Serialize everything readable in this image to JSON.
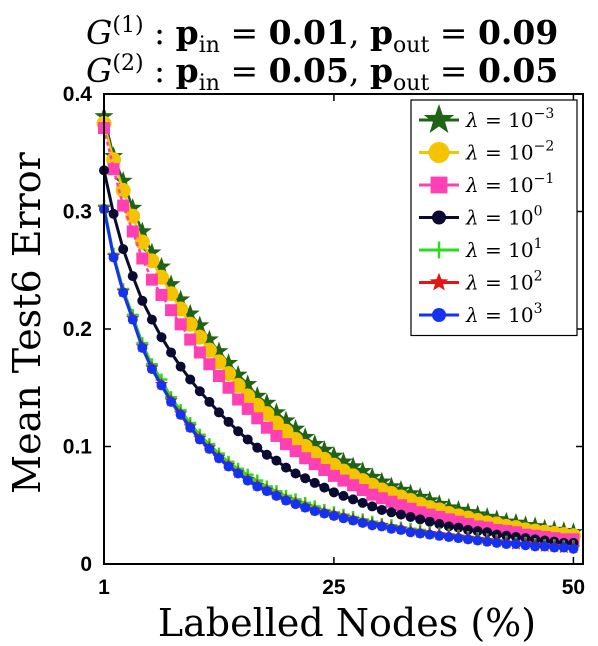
{
  "chart_data": {
    "type": "line",
    "title_lines": [
      {
        "graph": "G",
        "sup": "(1)",
        "p_in": "0.01",
        "p_out": "0.09"
      },
      {
        "graph": "G",
        "sup": "(2)",
        "p_in": "0.05",
        "p_out": "0.05"
      }
    ],
    "xlabel": "Labelled Nodes (%)",
    "ylabel": "Mean Test6 Error",
    "xlim": [
      1,
      51
    ],
    "ylim": [
      0,
      0.4
    ],
    "xticks": [
      1,
      25,
      50
    ],
    "yticks": [
      0,
      0.1,
      0.2,
      0.3,
      0.4
    ],
    "ytick_labels": [
      "0",
      "0.1",
      "0.2",
      "0.3",
      "0.4"
    ],
    "x": [
      1,
      2,
      3,
      4,
      5,
      6,
      7,
      8,
      9,
      10,
      11,
      12,
      13,
      14,
      15,
      16,
      17,
      18,
      19,
      20,
      21,
      22,
      23,
      24,
      25,
      26,
      27,
      28,
      29,
      30,
      31,
      32,
      33,
      34,
      35,
      36,
      37,
      38,
      39,
      40,
      41,
      42,
      43,
      44,
      45,
      46,
      47,
      48,
      49,
      50
    ],
    "legend_position": "top-right",
    "grid": false,
    "series": [
      {
        "name": "λ = 10",
        "exp": "−3",
        "color": "#1e6414",
        "marker": "star-big",
        "values": [
          0.381,
          0.347,
          0.326,
          0.303,
          0.283,
          0.265,
          0.253,
          0.238,
          0.225,
          0.213,
          0.203,
          0.191,
          0.181,
          0.171,
          0.161,
          0.153,
          0.143,
          0.137,
          0.129,
          0.122,
          0.115,
          0.108,
          0.102,
          0.097,
          0.092,
          0.087,
          0.083,
          0.079,
          0.074,
          0.07,
          0.066,
          0.063,
          0.06,
          0.057,
          0.054,
          0.051,
          0.048,
          0.046,
          0.044,
          0.042,
          0.04,
          0.038,
          0.036,
          0.035,
          0.033,
          0.032,
          0.03,
          0.029,
          0.028,
          0.027
        ]
      },
      {
        "name": "λ = 10",
        "exp": "−2",
        "color": "#f5c400",
        "marker": "circle-big",
        "values": [
          0.375,
          0.344,
          0.318,
          0.296,
          0.274,
          0.258,
          0.244,
          0.23,
          0.217,
          0.204,
          0.193,
          0.182,
          0.172,
          0.162,
          0.152,
          0.143,
          0.135,
          0.128,
          0.12,
          0.113,
          0.106,
          0.1,
          0.094,
          0.089,
          0.084,
          0.079,
          0.075,
          0.071,
          0.067,
          0.063,
          0.06,
          0.057,
          0.054,
          0.051,
          0.048,
          0.046,
          0.043,
          0.041,
          0.039,
          0.037,
          0.035,
          0.034,
          0.032,
          0.031,
          0.029,
          0.028,
          0.027,
          0.026,
          0.025,
          0.024
        ]
      },
      {
        "name": "λ = 10",
        "exp": "−1",
        "color": "#ff3fb4",
        "marker": "square",
        "values": [
          0.371,
          0.336,
          0.305,
          0.283,
          0.26,
          0.242,
          0.229,
          0.216,
          0.204,
          0.191,
          0.18,
          0.17,
          0.16,
          0.15,
          0.14,
          0.132,
          0.124,
          0.116,
          0.109,
          0.102,
          0.096,
          0.09,
          0.085,
          0.08,
          0.075,
          0.071,
          0.067,
          0.063,
          0.059,
          0.056,
          0.053,
          0.05,
          0.047,
          0.044,
          0.042,
          0.04,
          0.038,
          0.036,
          0.034,
          0.032,
          0.031,
          0.029,
          0.028,
          0.027,
          0.025,
          0.024,
          0.023,
          0.022,
          0.021,
          0.021
        ]
      },
      {
        "name": "λ = 10",
        "exp": "0",
        "color": "#0a0a32",
        "marker": "circle",
        "values": [
          0.335,
          0.298,
          0.268,
          0.245,
          0.224,
          0.208,
          0.193,
          0.18,
          0.168,
          0.157,
          0.147,
          0.138,
          0.129,
          0.121,
          0.113,
          0.106,
          0.099,
          0.093,
          0.088,
          0.082,
          0.077,
          0.073,
          0.069,
          0.065,
          0.061,
          0.058,
          0.055,
          0.052,
          0.049,
          0.046,
          0.044,
          0.042,
          0.04,
          0.038,
          0.036,
          0.034,
          0.032,
          0.031,
          0.029,
          0.028,
          0.027,
          0.025,
          0.024,
          0.023,
          0.022,
          0.021,
          0.02,
          0.019,
          0.018,
          0.018
        ]
      },
      {
        "name": "λ = 10",
        "exp": "1",
        "color": "#28dc1e",
        "marker": "plus",
        "values": [
          0.305,
          0.264,
          0.234,
          0.212,
          0.188,
          0.17,
          0.157,
          0.142,
          0.131,
          0.12,
          0.11,
          0.102,
          0.094,
          0.087,
          0.081,
          0.076,
          0.071,
          0.066,
          0.062,
          0.058,
          0.055,
          0.052,
          0.049,
          0.046,
          0.044,
          0.042,
          0.04,
          0.038,
          0.036,
          0.034,
          0.033,
          0.031,
          0.03,
          0.029,
          0.027,
          0.026,
          0.025,
          0.024,
          0.023,
          0.022,
          0.021,
          0.02,
          0.019,
          0.018,
          0.018,
          0.017,
          0.016,
          0.016,
          0.015,
          0.015
        ]
      },
      {
        "name": "λ = 10",
        "exp": "2",
        "color": "#e61414",
        "marker": "star",
        "values": [
          0.303,
          0.262,
          0.232,
          0.209,
          0.185,
          0.167,
          0.153,
          0.139,
          0.128,
          0.117,
          0.107,
          0.099,
          0.091,
          0.084,
          0.078,
          0.072,
          0.067,
          0.063,
          0.059,
          0.055,
          0.052,
          0.049,
          0.046,
          0.044,
          0.042,
          0.04,
          0.038,
          0.036,
          0.034,
          0.033,
          0.031,
          0.03,
          0.028,
          0.027,
          0.026,
          0.025,
          0.024,
          0.023,
          0.022,
          0.021,
          0.02,
          0.019,
          0.018,
          0.017,
          0.017,
          0.016,
          0.015,
          0.015,
          0.014,
          0.014
        ]
      },
      {
        "name": "λ = 10",
        "exp": "3",
        "color": "#1432f0",
        "marker": "circle",
        "values": [
          0.302,
          0.261,
          0.231,
          0.208,
          0.184,
          0.166,
          0.152,
          0.138,
          0.127,
          0.116,
          0.106,
          0.098,
          0.09,
          0.083,
          0.077,
          0.071,
          0.066,
          0.062,
          0.058,
          0.054,
          0.051,
          0.048,
          0.045,
          0.043,
          0.041,
          0.039,
          0.037,
          0.035,
          0.033,
          0.032,
          0.03,
          0.029,
          0.027,
          0.026,
          0.025,
          0.024,
          0.023,
          0.022,
          0.021,
          0.02,
          0.019,
          0.018,
          0.017,
          0.017,
          0.016,
          0.015,
          0.015,
          0.014,
          0.014,
          0.013
        ]
      }
    ]
  }
}
